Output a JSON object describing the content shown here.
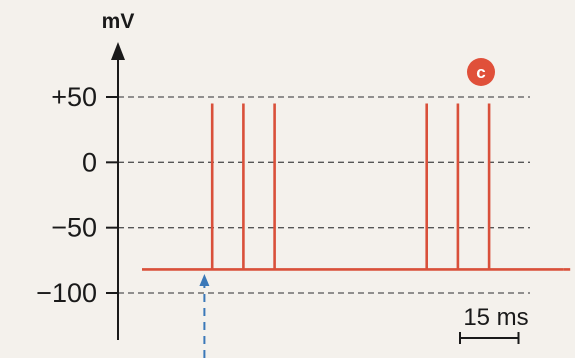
{
  "chart_data": {
    "type": "line",
    "title": "",
    "xlabel": "",
    "ylabel": "mV",
    "ylim": [
      -100,
      50
    ],
    "yticks": [
      {
        "value": 50,
        "label": "+50"
      },
      {
        "value": 0,
        "label": "0"
      },
      {
        "value": -50,
        "label": "−50"
      },
      {
        "value": -100,
        "label": "−100"
      }
    ],
    "grid": "horizontal dashed",
    "resting_potential": -82,
    "spike_peak": 45,
    "spike_times_ms": [
      18,
      26,
      34,
      73,
      81,
      89
    ],
    "trace_start_ms": 0,
    "trace_end_ms": 108,
    "trace_dashed_end_ms": 116,
    "stimulus_time_ms": 16,
    "scale_bar": {
      "length_ms": 15,
      "label": "15 ms"
    },
    "badge": "c",
    "colors": {
      "trace": "#d9503a",
      "axis": "#1a1a1a",
      "grid": "#555555",
      "stimulus": "#3a78b8",
      "badge": "#e0503a",
      "background": "#f4f1ec"
    }
  }
}
